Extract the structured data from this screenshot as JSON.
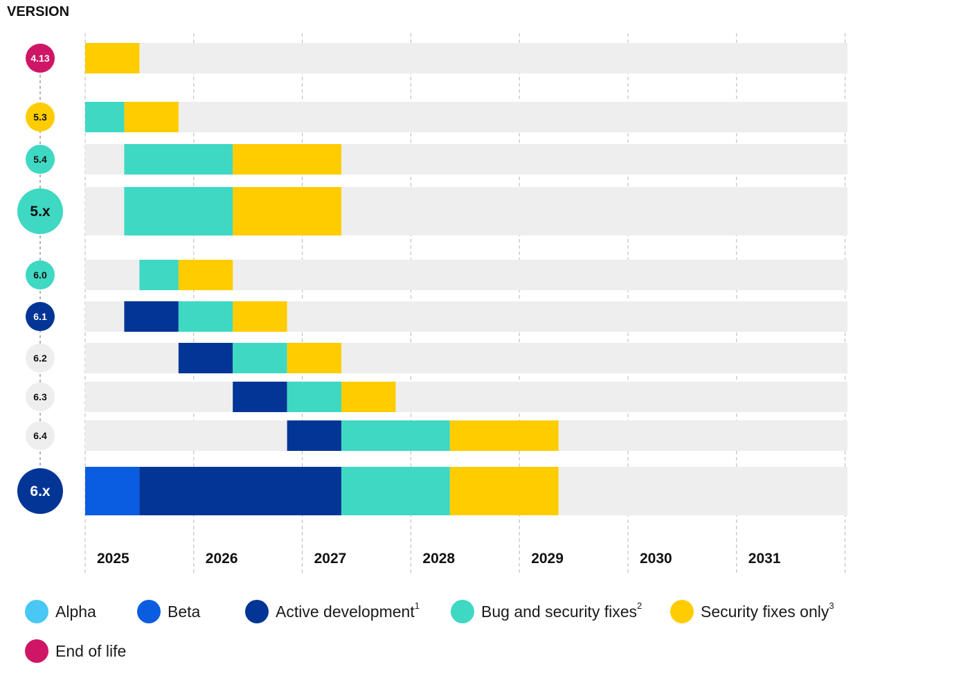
{
  "chart_data": {
    "type": "timeline",
    "title": "VERSION",
    "x_range": [
      2025,
      2032
    ],
    "x_ticks": [
      "2025",
      "2026",
      "2027",
      "2028",
      "2029",
      "2030",
      "2031"
    ],
    "phase_colors": {
      "alpha": "#4ac8f5",
      "beta": "#0a5ce0",
      "active": "#033596",
      "bugfix": "#3ed8c3",
      "security": "#ffcc00",
      "eol": "#cf1666",
      "track": "#eeeeee"
    },
    "versions": [
      {
        "label": "4.13",
        "badge": "eol",
        "badge_text": "light",
        "size": "small",
        "track_start": 2025.0,
        "segments": [
          {
            "phase": "security",
            "start": 2025.0,
            "end": 2025.5
          }
        ]
      },
      {
        "label": "5.3",
        "badge": "security",
        "badge_text": "dark",
        "size": "small",
        "track_start": 2025.0,
        "segments": [
          {
            "phase": "bugfix",
            "start": 2025.0,
            "end": 2025.36
          },
          {
            "phase": "security",
            "start": 2025.36,
            "end": 2025.86
          }
        ]
      },
      {
        "label": "5.4",
        "badge": "bugfix",
        "badge_text": "dark",
        "size": "small",
        "track_start": 2025.0,
        "segments": [
          {
            "phase": "bugfix",
            "start": 2025.36,
            "end": 2026.36
          },
          {
            "phase": "security",
            "start": 2026.36,
            "end": 2027.36
          }
        ]
      },
      {
        "label": "5.x",
        "badge": "bugfix",
        "badge_text": "dark",
        "size": "large",
        "track_start": 2025.0,
        "segments": [
          {
            "phase": "bugfix",
            "start": 2025.36,
            "end": 2026.36
          },
          {
            "phase": "security",
            "start": 2026.36,
            "end": 2027.36
          }
        ]
      },
      {
        "label": "6.0",
        "badge": "bugfix",
        "badge_text": "dark",
        "size": "small",
        "track_start": 2025.0,
        "segments": [
          {
            "phase": "bugfix",
            "start": 2025.5,
            "end": 2025.86
          },
          {
            "phase": "security",
            "start": 2025.86,
            "end": 2026.36
          }
        ]
      },
      {
        "label": "6.1",
        "badge": "active",
        "badge_text": "light",
        "size": "small",
        "track_start": 2025.0,
        "segments": [
          {
            "phase": "active",
            "start": 2025.36,
            "end": 2025.86
          },
          {
            "phase": "bugfix",
            "start": 2025.86,
            "end": 2026.36
          },
          {
            "phase": "security",
            "start": 2026.36,
            "end": 2026.86
          }
        ]
      },
      {
        "label": "6.2",
        "badge": "track",
        "badge_text": "dark",
        "size": "small",
        "track_start": 2025.0,
        "segments": [
          {
            "phase": "active",
            "start": 2025.86,
            "end": 2026.36
          },
          {
            "phase": "bugfix",
            "start": 2026.36,
            "end": 2026.86
          },
          {
            "phase": "security",
            "start": 2026.86,
            "end": 2027.36
          }
        ]
      },
      {
        "label": "6.3",
        "badge": "track",
        "badge_text": "dark",
        "size": "small",
        "track_start": 2025.0,
        "segments": [
          {
            "phase": "active",
            "start": 2026.36,
            "end": 2026.86
          },
          {
            "phase": "bugfix",
            "start": 2026.86,
            "end": 2027.36
          },
          {
            "phase": "security",
            "start": 2027.36,
            "end": 2027.86
          }
        ]
      },
      {
        "label": "6.4",
        "badge": "track",
        "badge_text": "dark",
        "size": "small",
        "track_start": 2025.0,
        "segments": [
          {
            "phase": "active",
            "start": 2026.86,
            "end": 2027.36
          },
          {
            "phase": "bugfix",
            "start": 2027.36,
            "end": 2028.36
          },
          {
            "phase": "security",
            "start": 2028.36,
            "end": 2029.36
          }
        ]
      },
      {
        "label": "6.x",
        "badge": "active",
        "badge_text": "light",
        "size": "large",
        "track_start": 2025.0,
        "segments": [
          {
            "phase": "beta",
            "start": 2025.0,
            "end": 2025.5
          },
          {
            "phase": "active",
            "start": 2025.5,
            "end": 2027.36
          },
          {
            "phase": "bugfix",
            "start": 2027.36,
            "end": 2028.36
          },
          {
            "phase": "security",
            "start": 2028.36,
            "end": 2029.36
          }
        ]
      }
    ],
    "legend": [
      {
        "key": "alpha",
        "label": "Alpha",
        "sup": ""
      },
      {
        "key": "beta",
        "label": "Beta",
        "sup": ""
      },
      {
        "key": "active",
        "label": "Active development",
        "sup": "1"
      },
      {
        "key": "bugfix",
        "label": "Bug and security fixes",
        "sup": "2"
      },
      {
        "key": "security",
        "label": "Security fixes only",
        "sup": "3"
      },
      {
        "key": "eol",
        "label": "End of life",
        "sup": ""
      }
    ]
  }
}
